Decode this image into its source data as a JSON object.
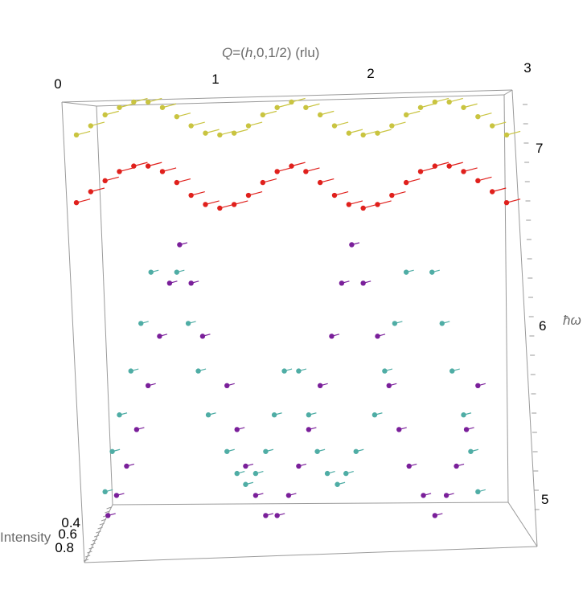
{
  "chart_data": {
    "type": "scatter",
    "title": "",
    "x_axis": {
      "label_prefix": "Q",
      "label_body": "=(",
      "label_h": "h",
      "label_rest": ",0,1/2) (rlu)",
      "range": [
        0,
        3
      ],
      "ticks": [
        "0",
        "1",
        "2",
        "3"
      ]
    },
    "y_axis": {
      "label_hbar": "ħ",
      "label_omega": "ω",
      "range": [
        4.85,
        7.3
      ],
      "ticks": [
        "5",
        "6",
        "7"
      ]
    },
    "z_axis": {
      "label": "Intensity",
      "ticks": [
        "0.4",
        "0.6",
        "0.8"
      ]
    },
    "grid": false,
    "legend": "none",
    "colors": {
      "yellow": "#c9c440",
      "red": "#e0201c",
      "teal": "#4fada5",
      "purple": "#7a1f9a"
    },
    "series": [
      {
        "color_key": "yellow",
        "comment_free": true,
        "x": [
          0.0,
          0.1,
          0.2,
          0.3,
          0.4,
          0.5,
          0.6,
          0.7,
          0.8,
          0.9,
          1.0,
          1.1,
          1.2,
          1.3,
          1.4,
          1.5,
          1.6,
          1.7,
          1.8,
          1.9,
          2.0,
          2.1,
          2.2,
          2.3,
          2.4,
          2.5,
          2.6,
          2.7,
          2.8,
          2.9,
          3.0
        ],
        "y": [
          7.05,
          7.1,
          7.16,
          7.2,
          7.23,
          7.23,
          7.2,
          7.15,
          7.1,
          7.06,
          7.05,
          7.06,
          7.1,
          7.16,
          7.2,
          7.23,
          7.2,
          7.16,
          7.1,
          7.06,
          7.05,
          7.06,
          7.1,
          7.16,
          7.2,
          7.23,
          7.23,
          7.2,
          7.15,
          7.1,
          7.05
        ]
      },
      {
        "color_key": "red",
        "x": [
          0.0,
          0.1,
          0.2,
          0.3,
          0.4,
          0.5,
          0.6,
          0.7,
          0.8,
          0.9,
          1.0,
          1.1,
          1.2,
          1.3,
          1.4,
          1.5,
          1.6,
          1.7,
          1.8,
          1.9,
          2.0,
          2.1,
          2.2,
          2.3,
          2.4,
          2.5,
          2.6,
          2.7,
          2.8,
          2.9,
          3.0
        ],
        "y": [
          6.68,
          6.74,
          6.8,
          6.85,
          6.88,
          6.88,
          6.85,
          6.79,
          6.72,
          6.67,
          6.65,
          6.67,
          6.72,
          6.79,
          6.85,
          6.88,
          6.85,
          6.79,
          6.72,
          6.67,
          6.65,
          6.67,
          6.72,
          6.79,
          6.85,
          6.88,
          6.88,
          6.85,
          6.8,
          6.74,
          6.68
        ]
      },
      {
        "color_key": "teal",
        "x": [
          0.2,
          0.25,
          0.3,
          0.38,
          0.45,
          0.52,
          0.7,
          0.78,
          0.85,
          0.92,
          1.05,
          1.12,
          1.18,
          1.25,
          1.32,
          1.38,
          1.45,
          1.55,
          1.62,
          1.68,
          1.75,
          1.82,
          1.88,
          1.95,
          2.08,
          2.15,
          2.22,
          2.3,
          2.48,
          2.55,
          2.62,
          2.7,
          2.75,
          2.8
        ],
        "y": [
          5.1,
          5.32,
          5.52,
          5.76,
          6.02,
          6.3,
          6.3,
          6.02,
          5.76,
          5.52,
          5.32,
          5.2,
          5.14,
          5.2,
          5.32,
          5.52,
          5.76,
          5.76,
          5.52,
          5.32,
          5.2,
          5.14,
          5.2,
          5.32,
          5.52,
          5.76,
          6.02,
          6.3,
          6.3,
          6.02,
          5.76,
          5.52,
          5.32,
          5.1
        ]
      },
      {
        "color_key": "purple",
        "x": [
          0.22,
          0.28,
          0.35,
          0.42,
          0.5,
          0.58,
          0.65,
          0.72,
          0.8,
          0.88,
          1.05,
          1.12,
          1.18,
          1.25,
          1.32,
          1.4,
          1.48,
          1.55,
          1.62,
          1.7,
          1.78,
          1.85,
          1.92,
          2.0,
          2.1,
          2.18,
          2.25,
          2.32,
          2.42,
          2.5,
          2.58,
          2.65,
          2.72,
          2.8
        ],
        "y": [
          4.97,
          5.08,
          5.24,
          5.44,
          5.68,
          5.95,
          6.24,
          6.45,
          6.24,
          5.95,
          5.68,
          5.44,
          5.24,
          5.08,
          4.97,
          4.97,
          5.08,
          5.24,
          5.44,
          5.68,
          5.95,
          6.24,
          6.45,
          6.24,
          5.95,
          5.68,
          5.44,
          5.24,
          5.08,
          4.97,
          5.08,
          5.24,
          5.44,
          5.68
        ]
      }
    ]
  }
}
